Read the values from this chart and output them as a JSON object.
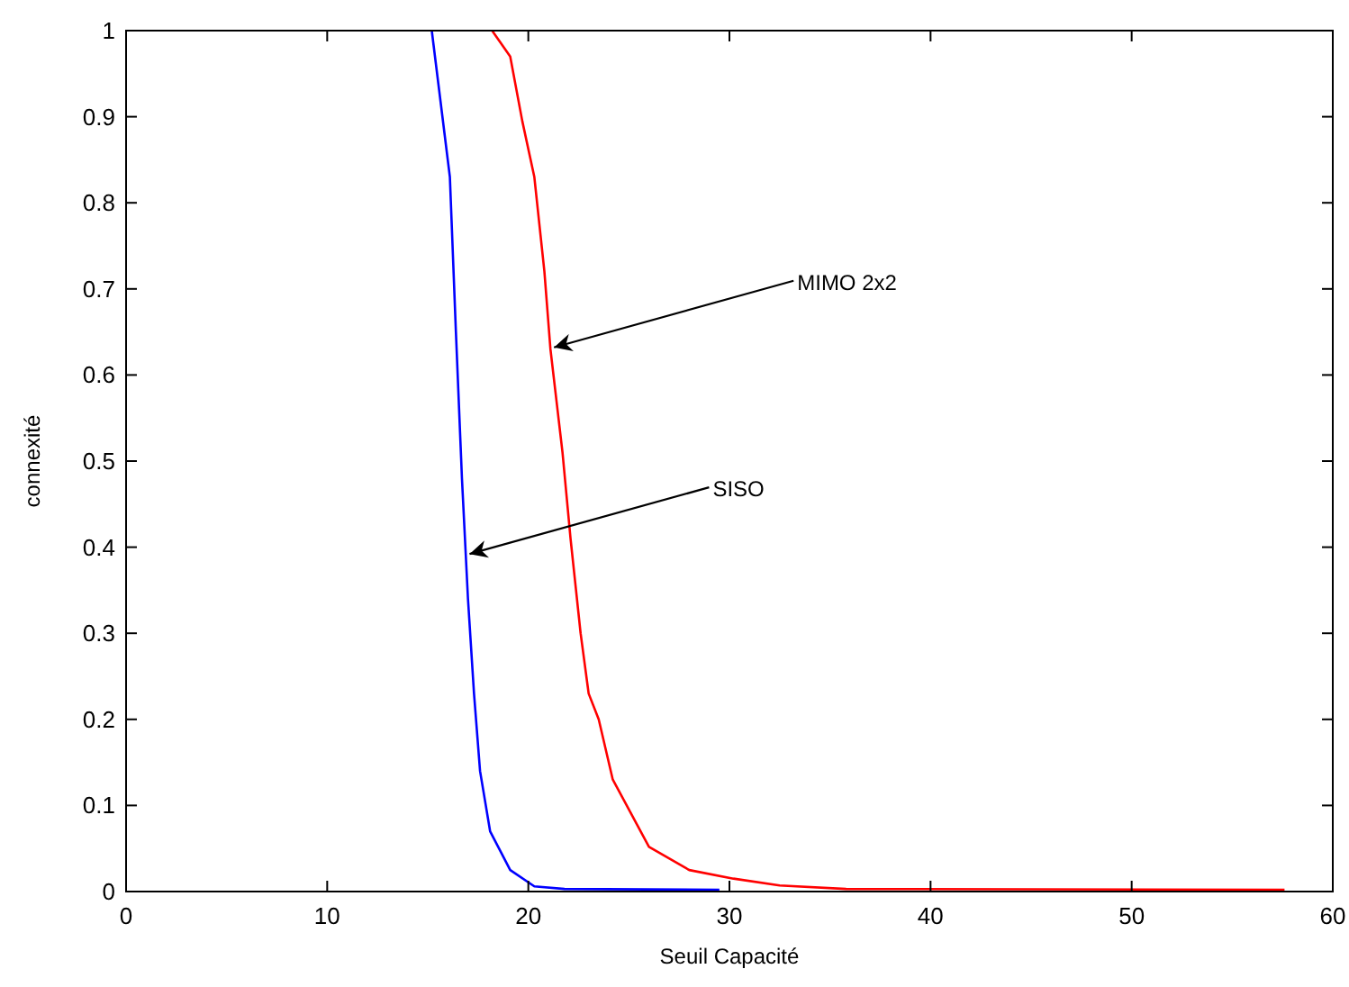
{
  "chart_data": {
    "type": "line",
    "xlabel": "Seuil Capacité",
    "ylabel": "connexité",
    "xlim": [
      0,
      60
    ],
    "ylim": [
      0,
      1
    ],
    "xticks": [
      0,
      10,
      20,
      30,
      40,
      50,
      60
    ],
    "yticks": [
      0,
      0.1,
      0.2,
      0.3,
      0.4,
      0.5,
      0.6,
      0.7,
      0.8,
      0.9,
      1
    ],
    "grid": false,
    "series": [
      {
        "color": "#0000ff",
        "x": [
          15.2,
          16.1,
          16.4,
          16.7,
          17.0,
          17.3,
          17.6,
          18.1,
          19.1,
          20.3,
          21.8,
          29.5
        ],
        "values": [
          1,
          0.83,
          0.65,
          0.48,
          0.34,
          0.23,
          0.14,
          0.07,
          0.025,
          0.006,
          0.003,
          0.002
        ]
      },
      {
        "color": "#ff0000",
        "x": [
          18.2,
          19.1,
          19.7,
          20.3,
          20.8,
          21.1,
          21.7,
          22.1,
          22.6,
          23.0,
          23.5,
          24.2,
          26.0,
          28.0,
          30.2,
          32.5,
          35.8,
          57.6
        ],
        "values": [
          1,
          0.97,
          0.895,
          0.83,
          0.72,
          0.63,
          0.51,
          0.41,
          0.3,
          0.23,
          0.2,
          0.13,
          0.052,
          0.025,
          0.015,
          0.007,
          0.003,
          0.002
        ]
      }
    ],
    "annotations": [
      {
        "text": "MIMO 2x2",
        "x": 21.1,
        "y": 0.63
      },
      {
        "text": "SISO",
        "x": 16.9,
        "y": 0.39
      }
    ]
  }
}
